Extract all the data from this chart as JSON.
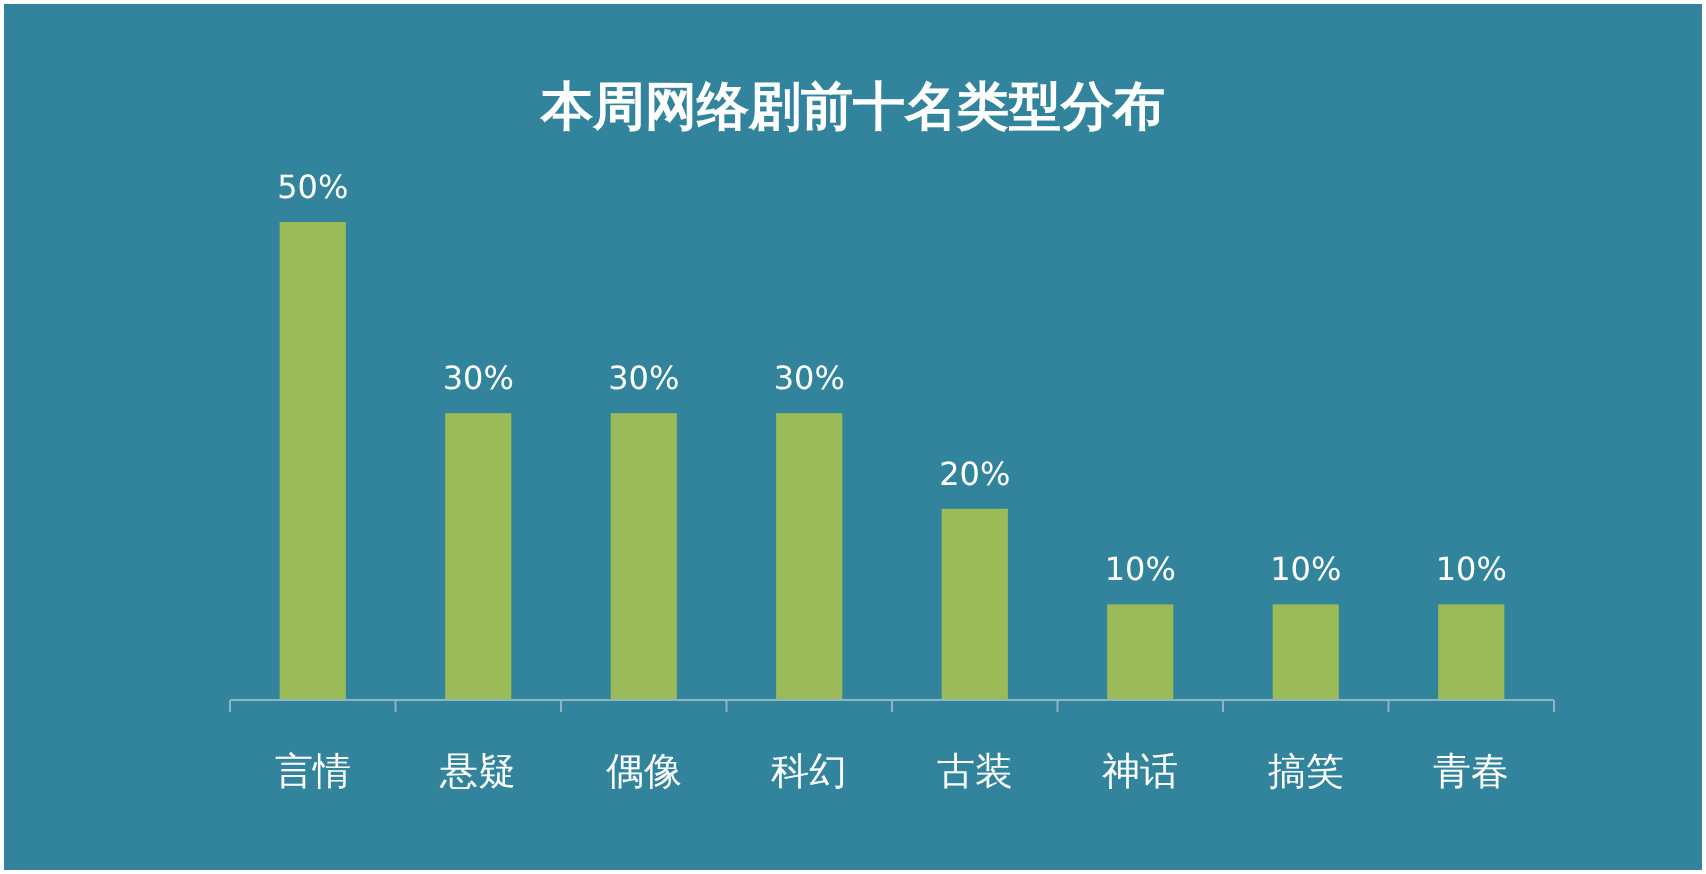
{
  "chart_data": {
    "type": "bar",
    "title": "本周网络剧前十名类型分布",
    "categories": [
      "言情",
      "悬疑",
      "偶像",
      "科幻",
      "古装",
      "神话",
      "搞笑",
      "青春"
    ],
    "values": [
      50,
      30,
      30,
      30,
      20,
      10,
      10,
      10
    ],
    "value_labels": [
      "50%",
      "30%",
      "30%",
      "30%",
      "20%",
      "10%",
      "10%",
      "10%"
    ],
    "color": "#9bbb59"
  }
}
